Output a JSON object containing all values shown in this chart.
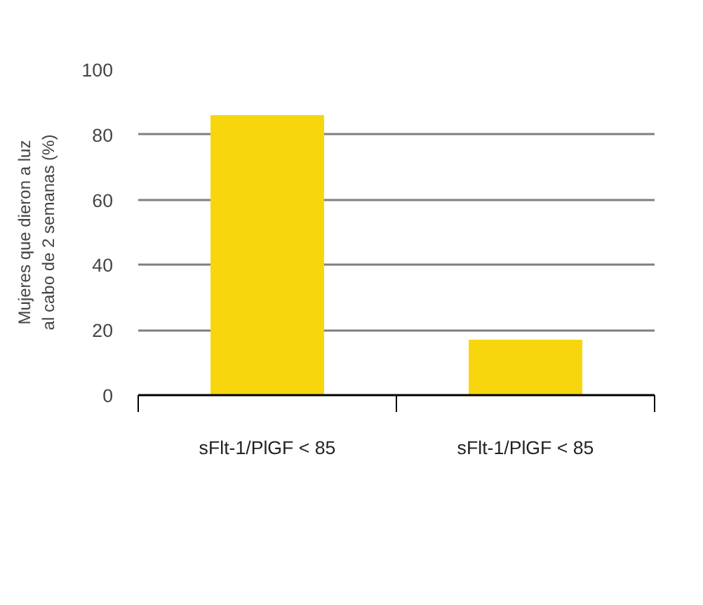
{
  "chart_data": {
    "type": "bar",
    "ylabel": "Mujeres que dieron a luz\nal cabo de 2 semanas (%)",
    "categories": [
      "sFlt-1/PlGF < 85",
      "sFlt-1/PlGF < 85"
    ],
    "values": [
      86,
      17
    ],
    "color": "#f8d60d",
    "ylim": [
      0,
      100
    ],
    "yticks": [
      0,
      20,
      40,
      60,
      80,
      100
    ],
    "grid": "y"
  }
}
